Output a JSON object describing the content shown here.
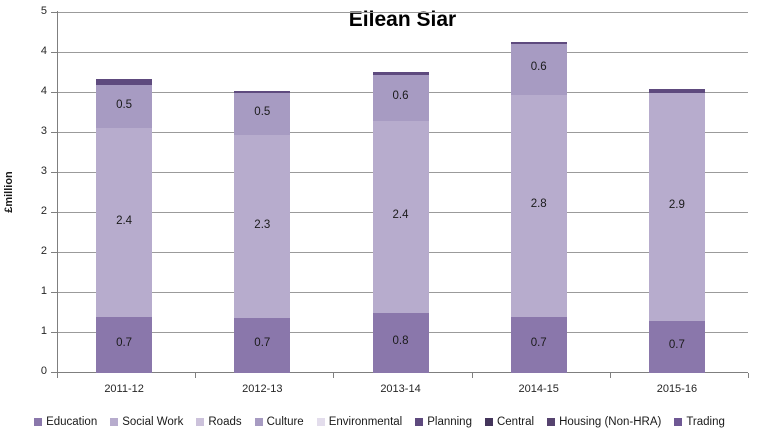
{
  "chart_data": {
    "type": "bar",
    "stacked": true,
    "title": "Eilean Siar",
    "ylabel": "£million",
    "xlabel": "",
    "ylim": [
      0,
      4.5
    ],
    "grid": true,
    "legend_position": "bottom",
    "y_axis": {
      "title": "£million",
      "ticks": [
        {
          "value": 0.0,
          "label": "0"
        },
        {
          "value": 0.5,
          "label": "1"
        },
        {
          "value": 1.0,
          "label": "1"
        },
        {
          "value": 1.5,
          "label": "2"
        },
        {
          "value": 2.0,
          "label": "2"
        },
        {
          "value": 2.5,
          "label": "3"
        },
        {
          "value": 3.0,
          "label": "3"
        },
        {
          "value": 3.5,
          "label": "4"
        },
        {
          "value": 4.0,
          "label": "4"
        },
        {
          "value": 4.5,
          "label": "5"
        }
      ]
    },
    "categories": [
      "2011-12",
      "2012-13",
      "2013-14",
      "2014-15",
      "2015-16"
    ],
    "series": [
      {
        "name": "Education",
        "color": "#8A77AB",
        "values": [
          0.7,
          0.69,
          0.75,
          0.7,
          0.65
        ],
        "labels": [
          "0.7",
          "0.7",
          "0.8",
          "0.7",
          "0.7"
        ]
      },
      {
        "name": "Social Work",
        "color": "#B7ACCD",
        "values": [
          2.36,
          2.28,
          2.4,
          2.78,
          2.85
        ],
        "labels": [
          "2.4",
          "2.3",
          "2.4",
          "2.8",
          "2.9"
        ]
      },
      {
        "name": "Roads",
        "color": "#CCC2DB",
        "values": [
          0,
          0,
          0,
          0,
          0
        ],
        "labels": [
          "",
          "",
          "",
          "",
          ""
        ]
      },
      {
        "name": "Culture",
        "color": "#A79BC2",
        "values": [
          0.54,
          0.53,
          0.58,
          0.63,
          0
        ],
        "labels": [
          "0.5",
          "0.5",
          "0.6",
          "0.6",
          ""
        ]
      },
      {
        "name": "Environmental",
        "color": "#E3DDEC",
        "values": [
          0,
          0,
          0,
          0,
          0
        ],
        "labels": [
          "",
          "",
          "",
          "",
          ""
        ]
      },
      {
        "name": "Planning",
        "color": "#5E4A7E",
        "values": [
          0.08,
          0.03,
          0.03,
          0.03,
          0.05
        ],
        "labels": [
          "",
          "",
          "",
          "",
          ""
        ]
      },
      {
        "name": "Central",
        "color": "#44355B",
        "values": [
          0,
          0,
          0,
          0,
          0
        ],
        "labels": [
          "",
          "",
          "",
          "",
          ""
        ]
      },
      {
        "name": "Housing (Non-HRA)",
        "color": "#56436F",
        "values": [
          0,
          0,
          0,
          0,
          0
        ],
        "labels": [
          "",
          "",
          "",
          "",
          ""
        ]
      },
      {
        "name": "Trading",
        "color": "#6F5894",
        "values": [
          0,
          0,
          0,
          0,
          0
        ],
        "labels": [
          "",
          "",
          "",
          "",
          ""
        ]
      }
    ],
    "colors": {
      "gridline": "#9b9b9b",
      "axis": "#7f7f7f",
      "tick_text": "#262626",
      "label_text": "#1a1a1a",
      "title_text": "#000000"
    }
  }
}
